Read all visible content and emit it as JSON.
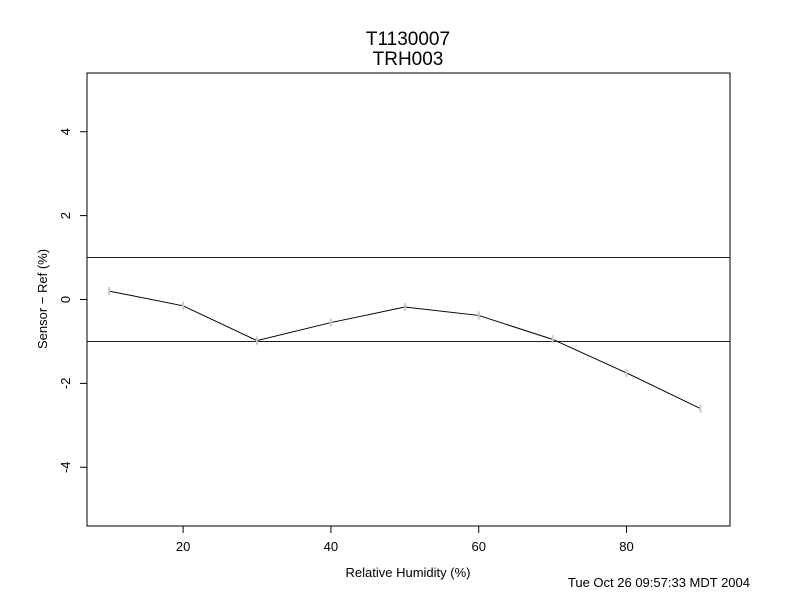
{
  "chart_data": {
    "type": "line",
    "title": "T1130007",
    "subtitle": "TRH003",
    "xlabel": "Relative Humidity (%)",
    "ylabel": "Sensor − Ref (%)",
    "xlim": [
      7,
      94
    ],
    "ylim": [
      -5.4,
      5.4
    ],
    "xticks": [
      20,
      40,
      60,
      80
    ],
    "yticks": [
      -4,
      -2,
      0,
      2,
      4
    ],
    "grid": false,
    "series": [
      {
        "x": [
          10,
          20,
          30,
          40,
          50,
          60,
          70,
          80,
          90
        ],
        "y": [
          0.2,
          -0.15,
          -0.98,
          -0.55,
          -0.18,
          -0.38,
          -0.95,
          -1.75,
          -2.6
        ]
      }
    ],
    "reference_lines_y": [
      1,
      -1
    ],
    "colors": {
      "line": "#000000",
      "marker": "#c8c8c8",
      "reference": "#000000"
    }
  },
  "footer": {
    "timestamp": "Tue Oct 26 09:57:33 MDT 2004"
  }
}
